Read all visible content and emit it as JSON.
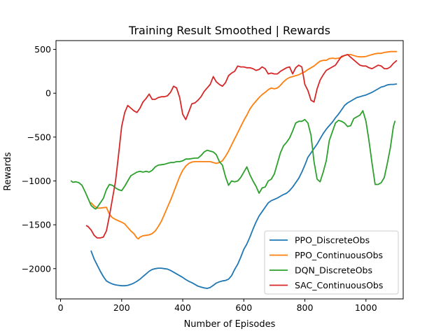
{
  "chart_data": {
    "type": "line",
    "title": "Training Result Smoothed | Rewards",
    "xlabel": "Number of Episodes",
    "ylabel": "Rewards",
    "xlim": [
      -15,
      1122
    ],
    "ylim": [
      -2345,
      600
    ],
    "xticks": [
      0,
      200,
      400,
      600,
      800,
      1000
    ],
    "yticks": [
      -2000,
      -1500,
      -1000,
      -500,
      0,
      500
    ],
    "grid": false,
    "legend_position": "lower-right",
    "series": [
      {
        "name": "PPO_DiscreteObs",
        "color": "#1f77b4",
        "x": [
          100,
          110,
          120,
          130,
          140,
          150,
          160,
          170,
          180,
          190,
          200,
          210,
          220,
          230,
          240,
          250,
          260,
          270,
          280,
          290,
          300,
          310,
          320,
          330,
          340,
          350,
          360,
          370,
          380,
          390,
          400,
          410,
          420,
          430,
          440,
          450,
          460,
          470,
          480,
          490,
          500,
          510,
          520,
          530,
          540,
          550,
          560,
          570,
          580,
          590,
          600,
          610,
          620,
          630,
          640,
          650,
          660,
          670,
          680,
          690,
          700,
          710,
          720,
          730,
          740,
          750,
          760,
          770,
          780,
          790,
          800,
          810,
          820,
          830,
          840,
          850,
          860,
          870,
          880,
          890,
          900,
          910,
          920,
          930,
          940,
          950,
          960,
          970,
          980,
          990,
          1000,
          1010,
          1020,
          1030,
          1040,
          1050,
          1060,
          1070,
          1080,
          1090,
          1100
        ],
        "y": [
          -1800,
          -1890,
          -1960,
          -2030,
          -2090,
          -2140,
          -2160,
          -2175,
          -2185,
          -2190,
          -2195,
          -2195,
          -2190,
          -2180,
          -2165,
          -2145,
          -2120,
          -2090,
          -2060,
          -2030,
          -2010,
          -2000,
          -1995,
          -1995,
          -2000,
          -2005,
          -2020,
          -2040,
          -2060,
          -2080,
          -2100,
          -2125,
          -2145,
          -2160,
          -2180,
          -2200,
          -2210,
          -2220,
          -2225,
          -2215,
          -2190,
          -2165,
          -2150,
          -2140,
          -2135,
          -2120,
          -2080,
          -2010,
          -1950,
          -1870,
          -1780,
          -1720,
          -1640,
          -1550,
          -1470,
          -1400,
          -1350,
          -1300,
          -1250,
          -1225,
          -1210,
          -1195,
          -1175,
          -1155,
          -1140,
          -1110,
          -1070,
          -1020,
          -970,
          -900,
          -820,
          -730,
          -680,
          -630,
          -580,
          -520,
          -460,
          -410,
          -370,
          -330,
          -280,
          -240,
          -190,
          -140,
          -110,
          -90,
          -70,
          -50,
          -40,
          -30,
          -20,
          -5,
          10,
          30,
          50,
          70,
          80,
          95,
          100,
          100,
          105
        ]
      },
      {
        "name": "PPO_ContinuousObs",
        "color": "#ff7f0e",
        "x": [
          100,
          110,
          120,
          130,
          140,
          150,
          160,
          170,
          180,
          190,
          200,
          210,
          220,
          230,
          240,
          250,
          255,
          260,
          270,
          280,
          290,
          300,
          310,
          320,
          330,
          340,
          350,
          360,
          370,
          380,
          390,
          400,
          410,
          420,
          430,
          440,
          450,
          460,
          470,
          480,
          490,
          500,
          510,
          520,
          530,
          540,
          550,
          560,
          570,
          580,
          590,
          600,
          610,
          620,
          630,
          640,
          650,
          660,
          670,
          680,
          690,
          700,
          710,
          720,
          730,
          740,
          750,
          760,
          770,
          780,
          790,
          800,
          810,
          820,
          830,
          840,
          850,
          860,
          870,
          880,
          890,
          900,
          910,
          920,
          930,
          940,
          950,
          960,
          970,
          980,
          990,
          1000,
          1010,
          1020,
          1030,
          1040,
          1050,
          1060,
          1070,
          1080,
          1090,
          1100
        ],
        "y": [
          -1250,
          -1285,
          -1310,
          -1310,
          -1305,
          -1300,
          -1380,
          -1420,
          -1440,
          -1455,
          -1470,
          -1490,
          -1530,
          -1570,
          -1600,
          -1650,
          -1660,
          -1640,
          -1625,
          -1620,
          -1615,
          -1600,
          -1570,
          -1520,
          -1460,
          -1380,
          -1300,
          -1220,
          -1130,
          -1040,
          -950,
          -880,
          -830,
          -800,
          -785,
          -780,
          -780,
          -780,
          -780,
          -780,
          -780,
          -790,
          -800,
          -790,
          -770,
          -720,
          -660,
          -590,
          -520,
          -450,
          -380,
          -310,
          -250,
          -180,
          -130,
          -90,
          -50,
          -15,
          10,
          40,
          60,
          50,
          60,
          90,
          130,
          160,
          180,
          190,
          200,
          210,
          230,
          245,
          270,
          290,
          310,
          340,
          365,
          375,
          375,
          395,
          400,
          395,
          400,
          410,
          430,
          440,
          440,
          430,
          420,
          415,
          415,
          420,
          430,
          440,
          450,
          455,
          455,
          465,
          470,
          475,
          475,
          475
        ]
      },
      {
        "name": "DQN_DiscreteObs",
        "color": "#2ca02c",
        "x": [
          35,
          40,
          50,
          60,
          70,
          80,
          90,
          100,
          110,
          115,
          120,
          130,
          140,
          150,
          160,
          170,
          180,
          190,
          200,
          210,
          220,
          230,
          240,
          250,
          260,
          270,
          280,
          290,
          300,
          310,
          320,
          330,
          340,
          350,
          360,
          370,
          380,
          390,
          400,
          410,
          420,
          430,
          440,
          450,
          460,
          470,
          480,
          490,
          500,
          510,
          520,
          530,
          540,
          550,
          560,
          570,
          580,
          590,
          600,
          610,
          620,
          630,
          640,
          650,
          660,
          670,
          680,
          690,
          700,
          710,
          720,
          730,
          740,
          750,
          760,
          770,
          780,
          790,
          800,
          810,
          820,
          830,
          840,
          850,
          860,
          870,
          880,
          890,
          900,
          910,
          920,
          930,
          940,
          950,
          960,
          970,
          980,
          990,
          1000,
          1010,
          1020,
          1030,
          1040,
          1050,
          1060,
          1070,
          1080,
          1090,
          1095
        ],
        "y": [
          -1000,
          -1015,
          -1010,
          -1020,
          -1050,
          -1120,
          -1200,
          -1280,
          -1310,
          -1320,
          -1300,
          -1250,
          -1200,
          -1100,
          -1040,
          -1050,
          -1080,
          -1100,
          -1110,
          -1060,
          -1000,
          -940,
          -920,
          -900,
          -890,
          -900,
          -890,
          -900,
          -880,
          -840,
          -820,
          -815,
          -810,
          -800,
          -790,
          -790,
          -780,
          -780,
          -770,
          -750,
          -750,
          -745,
          -740,
          -740,
          -710,
          -670,
          -650,
          -660,
          -670,
          -700,
          -780,
          -820,
          -950,
          -1050,
          -1000,
          -1010,
          -1000,
          -960,
          -900,
          -840,
          -930,
          -1000,
          -1060,
          -1140,
          -1080,
          -1070,
          -1000,
          -980,
          -920,
          -800,
          -680,
          -600,
          -560,
          -510,
          -430,
          -340,
          -320,
          -320,
          -300,
          -340,
          -480,
          -780,
          -980,
          -1010,
          -900,
          -770,
          -540,
          -440,
          -340,
          -310,
          -320,
          -340,
          -380,
          -370,
          -290,
          -270,
          -250,
          -200,
          -320,
          -540,
          -800,
          -1040,
          -1040,
          -1020,
          -960,
          -800,
          -620,
          -380,
          -320
        ]
      },
      {
        "name": "SAC_ContinuousObs",
        "color": "#d62728",
        "x": [
          85,
          90,
          100,
          110,
          120,
          130,
          140,
          150,
          160,
          170,
          180,
          190,
          200,
          210,
          220,
          230,
          240,
          250,
          260,
          270,
          280,
          290,
          300,
          310,
          320,
          330,
          340,
          350,
          360,
          370,
          380,
          390,
          400,
          410,
          420,
          430,
          440,
          450,
          460,
          470,
          480,
          490,
          500,
          510,
          520,
          530,
          540,
          550,
          560,
          570,
          580,
          590,
          600,
          610,
          620,
          630,
          640,
          650,
          660,
          670,
          680,
          690,
          700,
          710,
          720,
          730,
          740,
          750,
          760,
          770,
          780,
          790,
          800,
          810,
          820,
          830,
          840,
          850,
          860,
          870,
          880,
          890,
          900,
          910,
          920,
          930,
          940,
          950,
          960,
          970,
          980,
          990,
          1000,
          1010,
          1020,
          1030,
          1040,
          1050,
          1060,
          1070,
          1080,
          1090,
          1100
        ],
        "y": [
          -1510,
          -1520,
          -1560,
          -1620,
          -1650,
          -1650,
          -1640,
          -1570,
          -1400,
          -1200,
          -1000,
          -700,
          -380,
          -220,
          -140,
          -170,
          -200,
          -220,
          -170,
          -100,
          -60,
          -10,
          -70,
          -70,
          -50,
          -40,
          -40,
          -30,
          10,
          80,
          60,
          -50,
          -240,
          -300,
          -210,
          -120,
          -110,
          -80,
          -40,
          20,
          60,
          100,
          190,
          130,
          100,
          80,
          120,
          200,
          230,
          250,
          310,
          300,
          300,
          290,
          290,
          280,
          260,
          270,
          300,
          280,
          220,
          230,
          220,
          220,
          250,
          270,
          290,
          300,
          220,
          290,
          320,
          300,
          100,
          30,
          -80,
          -100,
          50,
          150,
          210,
          260,
          280,
          300,
          320,
          370,
          420,
          430,
          440,
          410,
          380,
          350,
          320,
          310,
          310,
          290,
          280,
          300,
          320,
          310,
          280,
          280,
          300,
          340,
          370
        ]
      }
    ]
  }
}
